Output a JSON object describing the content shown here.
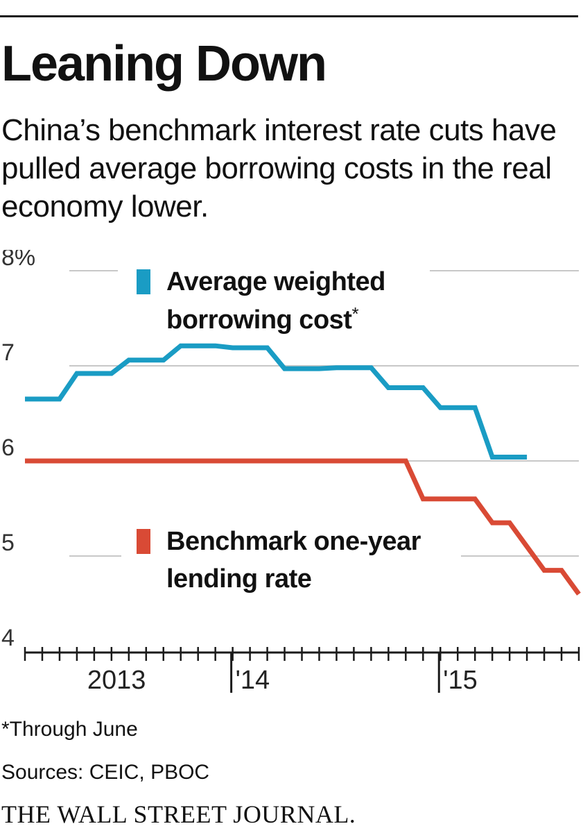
{
  "headline": "Leaning Down",
  "subtitle": "China’s benchmark interest rate cuts have pulled average borrowing costs in the real economy lower.",
  "footnote": "*Through June",
  "sources": "Sources: CEIC, PBOC",
  "publisher": "THE WALL STREET JOURNAL.",
  "chart_data": {
    "type": "line",
    "title": "Leaning Down",
    "x_unit": "month",
    "xlim": [
      "2013-01",
      "2015-09"
    ],
    "ylim": [
      4,
      8
    ],
    "y_ticks": [
      {
        "value": 8,
        "label": "8%"
      },
      {
        "value": 7,
        "label": "7"
      },
      {
        "value": 6,
        "label": "6"
      },
      {
        "value": 5,
        "label": "5"
      },
      {
        "value": 4,
        "label": "4"
      }
    ],
    "x_year_labels": [
      {
        "x": "2013-06",
        "label": "2013"
      },
      {
        "x": "2014-01",
        "label": "'14"
      },
      {
        "x": "2015-01",
        "label": "'15"
      }
    ],
    "grid": true,
    "series": [
      {
        "name": "Average weighted borrowing cost",
        "name_suffix": "*",
        "label_lines": [
          "Average weighted",
          "borrowing cost"
        ],
        "color": "#1a9cc4",
        "points": [
          [
            "2013-01",
            6.65
          ],
          [
            "2013-03",
            6.65
          ],
          [
            "2013-04",
            6.92
          ],
          [
            "2013-06",
            6.92
          ],
          [
            "2013-07",
            7.06
          ],
          [
            "2013-09",
            7.06
          ],
          [
            "2013-10",
            7.21
          ],
          [
            "2013-12",
            7.21
          ],
          [
            "2014-01",
            7.19
          ],
          [
            "2014-03",
            7.19
          ],
          [
            "2014-04",
            6.97
          ],
          [
            "2014-06",
            6.97
          ],
          [
            "2014-07",
            6.98
          ],
          [
            "2014-09",
            6.98
          ],
          [
            "2014-10",
            6.77
          ],
          [
            "2014-12",
            6.77
          ],
          [
            "2015-01",
            6.56
          ],
          [
            "2015-03",
            6.56
          ],
          [
            "2015-04",
            6.04
          ],
          [
            "2015-06",
            6.04
          ]
        ]
      },
      {
        "name": "Benchmark one-year lending rate",
        "label_lines": [
          "Benchmark one-year",
          "lending rate"
        ],
        "color": "#d94a35",
        "points": [
          [
            "2013-01",
            6.0
          ],
          [
            "2014-11",
            6.0
          ],
          [
            "2014-12",
            5.6
          ],
          [
            "2015-03",
            5.6
          ],
          [
            "2015-04",
            5.35
          ],
          [
            "2015-05",
            5.35
          ],
          [
            "2015-07",
            4.85
          ],
          [
            "2015-08",
            4.85
          ],
          [
            "2015-09",
            4.6
          ]
        ]
      }
    ]
  }
}
